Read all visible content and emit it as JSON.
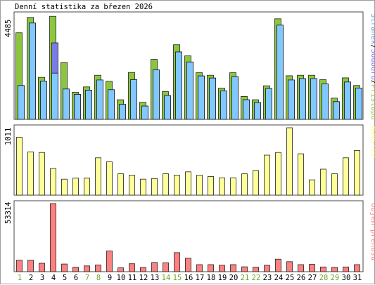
{
  "chart_data": [
    {
      "type": "bar",
      "title": "Denní statistika za březen 2026",
      "panel": "pristupy",
      "ymax_label": "4485",
      "ylim": [
        0,
        4485
      ],
      "categories": [
        "1",
        "2",
        "3",
        "4",
        "5",
        "6",
        "7",
        "8",
        "9",
        "10",
        "11",
        "12",
        "13",
        "14",
        "15",
        "16",
        "17",
        "18",
        "19",
        "20",
        "21",
        "22",
        "23",
        "24",
        "25",
        "26",
        "27",
        "28",
        "29",
        "30",
        "31"
      ],
      "weekend_days": [
        "1",
        "7",
        "8",
        "14",
        "15",
        "21",
        "22",
        "28",
        "29"
      ],
      "vertical_label": {
        "parts": [
          "Stránek",
          "/",
          "Souborů",
          "/",
          "Přístupů"
        ],
        "colors": [
          "#6699cc",
          "#000000",
          "#7b7be6",
          "#000000",
          "#8cc63e"
        ]
      },
      "series": [
        {
          "name": "Přístupů",
          "color": "#8cc63e",
          "values": [
            3710,
            4370,
            1800,
            4420,
            2440,
            1160,
            1390,
            1890,
            1630,
            840,
            2010,
            730,
            2570,
            1190,
            3200,
            2720,
            2000,
            1890,
            1340,
            2000,
            980,
            840,
            1440,
            4310,
            1870,
            1890,
            1890,
            1700,
            910,
            1780,
            1450
          ]
        },
        {
          "name": "Soubory",
          "color": "#7b7be6",
          "values": [
            1450,
            4130,
            1640,
            3280,
            1300,
            1070,
            1250,
            1690,
            1270,
            640,
            1700,
            570,
            2120,
            1020,
            2890,
            2460,
            1860,
            1770,
            1220,
            1830,
            840,
            720,
            1320,
            4040,
            1690,
            1750,
            1750,
            1520,
            760,
            1600,
            1340
          ]
        },
        {
          "name": "Stránky",
          "color": "#80c8ff",
          "values": [
            1450,
            4130,
            1640,
            1980,
            1300,
            1070,
            1250,
            1690,
            1270,
            640,
            1700,
            570,
            2120,
            1020,
            2890,
            2460,
            1860,
            1770,
            1220,
            1830,
            840,
            720,
            1320,
            4040,
            1690,
            1750,
            1750,
            1520,
            760,
            1600,
            1340
          ]
        }
      ]
    },
    {
      "type": "bar",
      "panel": "navstev",
      "ymax_label": "1011",
      "ylim": [
        0,
        1011
      ],
      "vertical_label": {
        "parts": [
          "Návštěv"
        ],
        "colors": [
          "#ffff80"
        ]
      },
      "series": [
        {
          "name": "Návštěv",
          "color": "#ffff99",
          "values": [
            870,
            650,
            640,
            400,
            240,
            255,
            255,
            560,
            500,
            320,
            300,
            240,
            250,
            320,
            300,
            350,
            300,
            280,
            260,
            260,
            320,
            370,
            600,
            640,
            1011,
            620,
            230,
            390,
            320,
            560,
            670
          ]
        }
      ]
    },
    {
      "type": "bar",
      "panel": "objem",
      "ymax_label": "53314",
      "ylim": [
        0,
        53314
      ],
      "vertical_label": {
        "parts": [
          "Objem přenosů"
        ],
        "colors": [
          "#ff8080"
        ]
      },
      "series": [
        {
          "name": "Objem přenosů",
          "color": "#ff8080",
          "values": [
            9000,
            9000,
            6600,
            53314,
            6000,
            3500,
            4500,
            5300,
            16200,
            3000,
            6200,
            3300,
            7200,
            7000,
            14900,
            10500,
            5500,
            5500,
            5000,
            5500,
            3800,
            3500,
            5000,
            9800,
            7800,
            5500,
            5700,
            3700,
            3400,
            3700,
            5500
          ]
        }
      ]
    }
  ]
}
